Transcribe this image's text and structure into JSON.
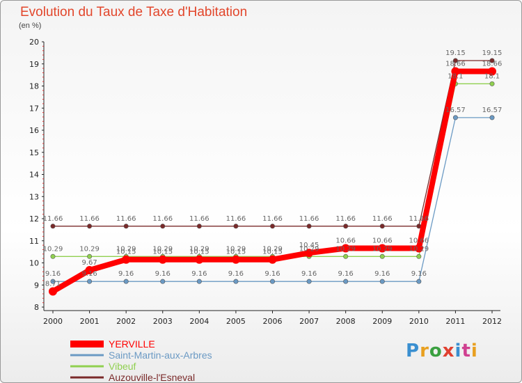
{
  "header": {
    "title": "Evolution du Taux de Taxe d'Habitation",
    "unit": "(en %)"
  },
  "logo": {
    "text": "Proxiti"
  },
  "chart_data": {
    "type": "line",
    "title": "Evolution du Taux de Taxe d'Habitation",
    "ylabel": "(en %)",
    "xlabel": "",
    "x": [
      2000,
      2001,
      2002,
      2003,
      2004,
      2005,
      2006,
      2007,
      2008,
      2009,
      2010,
      2011,
      2012
    ],
    "ylim": [
      8,
      20
    ],
    "yticks": [
      8,
      9,
      10,
      11,
      12,
      13,
      14,
      15,
      16,
      17,
      18,
      19,
      20
    ],
    "grid": false,
    "legend": "bottom-left",
    "series": [
      {
        "name": "YERVILLE",
        "color": "#ff0000",
        "values": [
          8.71,
          9.67,
          10.15,
          10.15,
          10.15,
          10.15,
          10.15,
          10.45,
          10.66,
          10.66,
          10.66,
          18.66,
          18.66
        ]
      },
      {
        "name": "Saint-Martin-aux-Arbres",
        "color": "#6b9ac4",
        "values": [
          9.16,
          9.16,
          9.16,
          9.16,
          9.16,
          9.16,
          9.16,
          9.16,
          9.16,
          9.16,
          9.16,
          16.57,
          16.57
        ]
      },
      {
        "name": "Vibeuf",
        "color": "#90d050",
        "values": [
          10.29,
          10.29,
          10.29,
          10.29,
          10.29,
          10.29,
          10.29,
          10.29,
          10.29,
          10.29,
          10.29,
          18.1,
          18.1
        ]
      },
      {
        "name": "Auzouville-l'Esneval",
        "color": "#7a2a2a",
        "values": [
          11.66,
          11.66,
          11.66,
          11.66,
          11.66,
          11.66,
          11.66,
          11.66,
          11.66,
          11.66,
          11.66,
          19.15,
          19.15
        ]
      }
    ]
  }
}
